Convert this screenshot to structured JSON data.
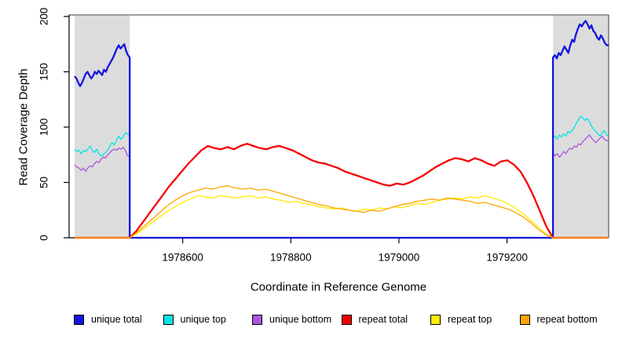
{
  "chart_data": {
    "type": "line",
    "title": "",
    "xlabel": "Coordinate in Reference Genome",
    "ylabel": "Read Coverage Depth",
    "xlim": [
      1978400,
      1979388
    ],
    "ylim": [
      0,
      200
    ],
    "x_ticks": [
      1978600,
      1978800,
      1979000,
      1979200
    ],
    "y_ticks": [
      0,
      50,
      100,
      150,
      200
    ],
    "grid": false,
    "legend_position": "bottom",
    "plot_bg": "#FFFFFF",
    "shaded_region_color": "#DCDCDC",
    "shaded_regions": [
      {
        "name": "left-flank",
        "x0": 1978400,
        "x1": 1978502
      },
      {
        "name": "right-flank",
        "x0": 1979285,
        "x1": 1979388
      }
    ],
    "series": [
      {
        "name": "unique top",
        "color": "#00E5E5",
        "width": 1.3,
        "segments": [
          {
            "x0": 1978400,
            "x1": 1978502,
            "values": [
              80,
              78,
              79,
              76,
              79,
              78,
              80,
              83,
              79,
              77,
              80,
              76,
              74,
              75,
              77,
              79,
              83,
              86,
              84,
              88,
              92,
              89,
              91,
              95,
              94,
              93
            ]
          },
          {
            "x0": 1978502,
            "x1": 1979285,
            "values": [
              0,
              0
            ]
          },
          {
            "x0": 1979285,
            "x1": 1979388,
            "values": [
              90,
              92,
              89,
              93,
              91,
              94,
              92,
              96,
              95,
              97,
              100,
              104,
              107,
              110,
              108,
              106,
              108,
              105,
              101,
              98,
              96,
              94,
              92,
              95,
              97,
              93,
              92
            ]
          }
        ]
      },
      {
        "name": "unique bottom",
        "color": "#AA55E0",
        "width": 1.3,
        "segments": [
          {
            "x0": 1978400,
            "x1": 1978502,
            "values": [
              66,
              64,
              63,
              61,
              63,
              60,
              63,
              65,
              64,
              67,
              69,
              68,
              71,
              73,
              72,
              75,
              77,
              79,
              80,
              79,
              81,
              80,
              82,
              79,
              74,
              73
            ]
          },
          {
            "x0": 1978502,
            "x1": 1979285,
            "values": [
              0,
              0
            ]
          },
          {
            "x0": 1979285,
            "x1": 1979388,
            "values": [
              77,
              74,
              76,
              73,
              75,
              78,
              76,
              79,
              81,
              80,
              83,
              82,
              85,
              84,
              87,
              89,
              91,
              93,
              90,
              88,
              86,
              88,
              90,
              92,
              89,
              88,
              87
            ]
          }
        ]
      },
      {
        "name": "unique total",
        "color": "#1414E0",
        "width": 2.3,
        "segments": [
          {
            "x0": 1978400,
            "x1": 1978502,
            "values": [
              146,
              144,
              140,
              137,
              140,
              144,
              148,
              150,
              147,
              144,
              146,
              150,
              148,
              151,
              149,
              147,
              152,
              150,
              154,
              157,
              160,
              163,
              167,
              171,
              174,
              171,
              173,
              175,
              169,
              165,
              163
            ]
          },
          {
            "x0": 1978502,
            "x1": 1979285,
            "values": [
              0,
              0
            ]
          },
          {
            "x0": 1979285,
            "x1": 1979388,
            "values": [
              163,
              165,
              162,
              167,
              165,
              169,
              173,
              170,
              167,
              174,
              179,
              177,
              184,
              189,
              193,
              191,
              194,
              196,
              193,
              189,
              192,
              187,
              185,
              181,
              179,
              183,
              180,
              176,
              174,
              174
            ]
          }
        ]
      },
      {
        "name": "repeat total",
        "color": "#F50000",
        "width": 2.3,
        "segments": [
          {
            "x0": 1978400,
            "x1": 1978502,
            "values": [
              0,
              0
            ]
          },
          {
            "x0": 1978502,
            "x1": 1979285,
            "values": [
              0,
              6,
              14,
              22,
              30,
              38,
              46,
              53,
              60,
              67,
              73,
              79,
              83,
              81,
              80,
              82,
              80,
              83,
              85,
              83,
              81,
              80,
              82,
              83,
              81,
              79,
              76,
              73,
              70,
              68,
              67,
              65,
              63,
              60,
              58,
              56,
              54,
              52,
              50,
              48,
              47,
              49,
              48,
              50,
              53,
              56,
              60,
              64,
              67,
              70,
              72,
              71,
              69,
              72,
              70,
              67,
              65,
              69,
              70,
              66,
              60,
              50,
              38,
              24,
              10,
              0
            ]
          },
          {
            "x0": 1979285,
            "x1": 1979388,
            "values": [
              0,
              0
            ]
          }
        ]
      },
      {
        "name": "repeat top",
        "color": "#FFEB00",
        "width": 1.3,
        "segments": [
          {
            "x0": 1978400,
            "x1": 1978502,
            "values": [
              0,
              0
            ]
          },
          {
            "x0": 1978502,
            "x1": 1979285,
            "values": [
              0,
              4,
              9,
              14,
              19,
              24,
              28,
              32,
              35,
              38,
              37,
              36,
              38,
              37,
              36,
              37,
              38,
              36,
              37,
              35,
              34,
              32,
              33,
              31,
              30,
              28,
              27,
              26,
              27,
              25,
              24,
              26,
              25,
              27,
              26,
              28,
              27,
              29,
              31,
              30,
              32,
              34,
              35,
              36,
              35,
              37,
              36,
              38,
              36,
              34,
              31,
              27,
              22,
              16,
              10,
              4,
              0
            ]
          },
          {
            "x0": 1979285,
            "x1": 1979388,
            "values": [
              0,
              0
            ]
          }
        ]
      },
      {
        "name": "repeat bottom",
        "color": "#FFA500",
        "width": 1.3,
        "segments": [
          {
            "x0": 1978400,
            "x1": 1978502,
            "values": [
              0,
              0
            ]
          },
          {
            "x0": 1978502,
            "x1": 1979285,
            "values": [
              0,
              5,
              11,
              17,
              23,
              29,
              34,
              38,
              41,
              43,
              45,
              44,
              46,
              47,
              45,
              44,
              45,
              43,
              44,
              42,
              40,
              38,
              36,
              34,
              32,
              30,
              29,
              27,
              26,
              25,
              24,
              23,
              25,
              24,
              26,
              28,
              30,
              31,
              33,
              34,
              35,
              34,
              36,
              35,
              34,
              33,
              31,
              32,
              30,
              28,
              26,
              23,
              19,
              14,
              8,
              3,
              0
            ]
          },
          {
            "x0": 1979285,
            "x1": 1979388,
            "values": [
              0,
              0
            ]
          }
        ]
      }
    ],
    "legend": [
      {
        "label": "unique total",
        "color": "#1414E0"
      },
      {
        "label": "unique top",
        "color": "#00E5E5"
      },
      {
        "label": "unique bottom",
        "color": "#AA55E0"
      },
      {
        "label": "repeat total",
        "color": "#F50000"
      },
      {
        "label": "repeat top",
        "color": "#FFEB00"
      },
      {
        "label": "repeat bottom",
        "color": "#FFA500"
      }
    ]
  }
}
